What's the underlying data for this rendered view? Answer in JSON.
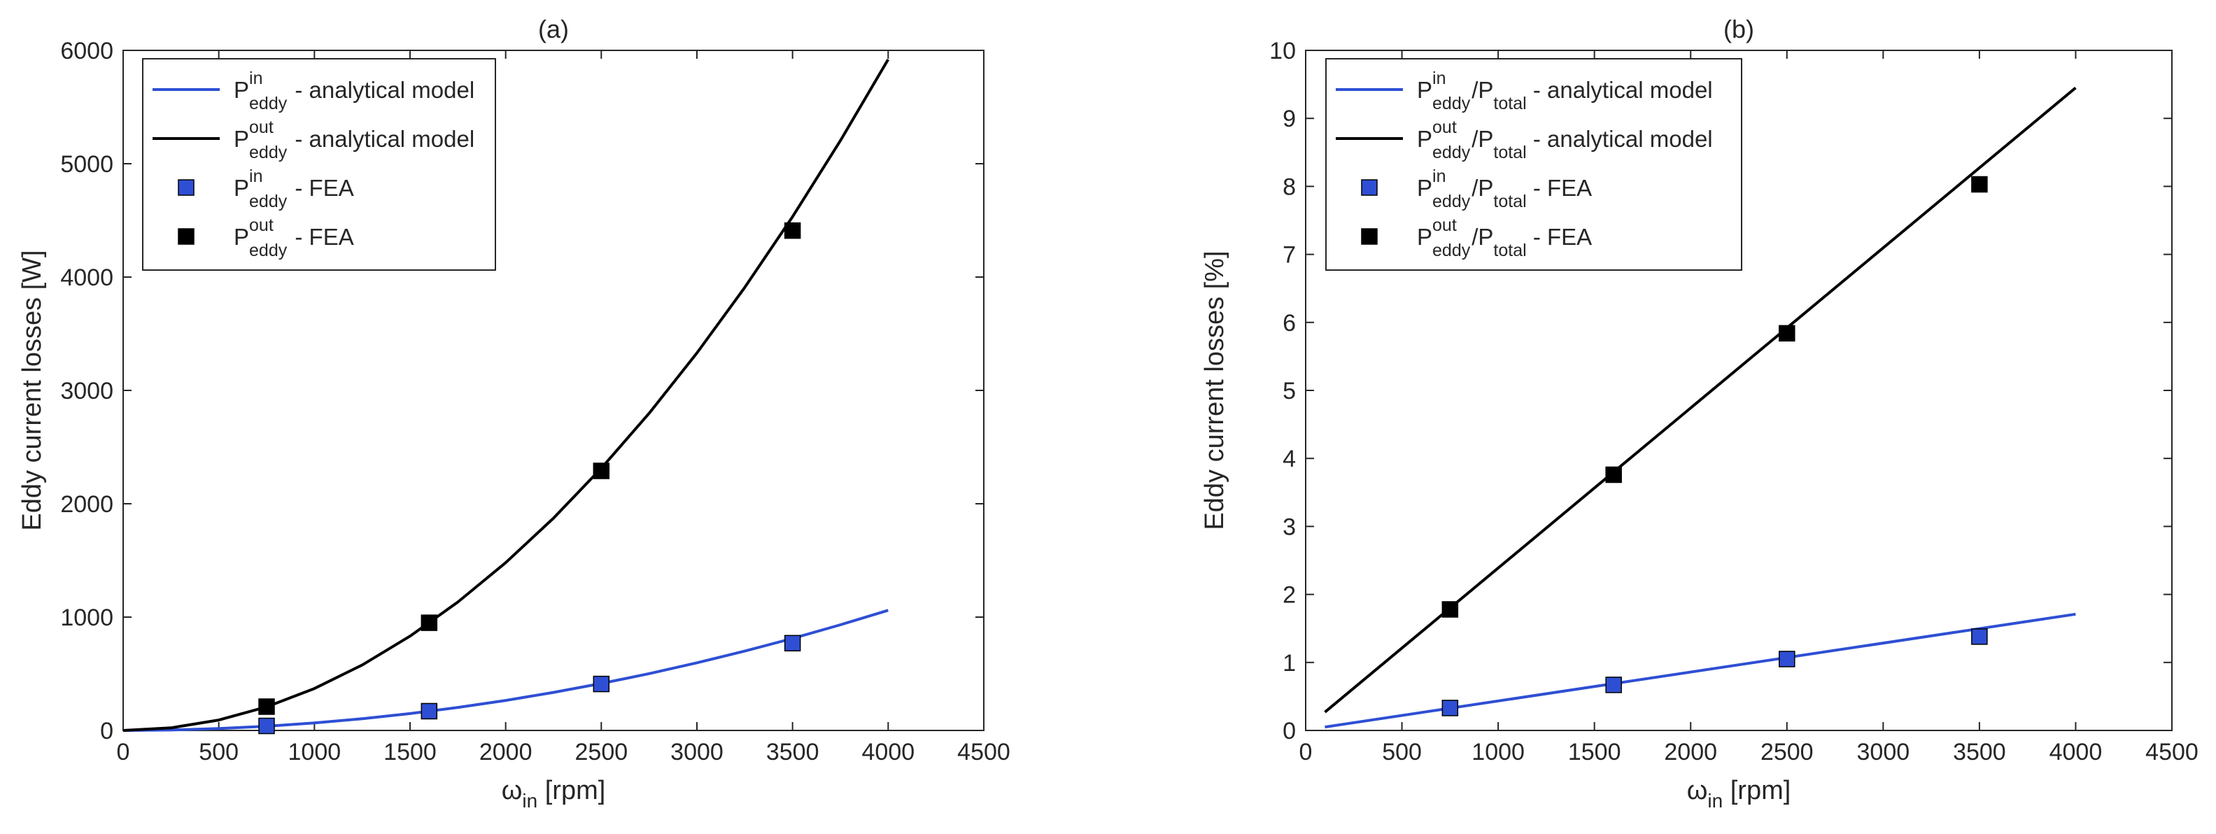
{
  "colors": {
    "blue": "#2e4fd4",
    "black": "#000000",
    "axis": "#262626"
  },
  "chart_data": [
    {
      "type": "line",
      "title": "(a)",
      "xlabel": {
        "main": "ω",
        "sub": "in",
        "rest": " [rpm]"
      },
      "ylabel": "Eddy current losses [W]",
      "xlim": [
        0,
        4500
      ],
      "ylim": [
        0,
        6000
      ],
      "xticks": [
        0,
        500,
        1000,
        1500,
        2000,
        2500,
        3000,
        3500,
        4000,
        4500
      ],
      "yticks": [
        0,
        1000,
        2000,
        3000,
        4000,
        5000,
        6000
      ],
      "series": [
        {
          "name": "analytical-in",
          "kind": "line",
          "color": "blue",
          "x": [
            0,
            250,
            500,
            750,
            1000,
            1250,
            1500,
            1750,
            2000,
            2250,
            2500,
            2750,
            3000,
            3250,
            3500,
            3750,
            4000
          ],
          "values": [
            0,
            4,
            17,
            37,
            66,
            104,
            149,
            203,
            265,
            336,
            414,
            501,
            597,
            700,
            812,
            932,
            1060
          ]
        },
        {
          "name": "analytical-out",
          "kind": "line",
          "color": "black",
          "x": [
            0,
            250,
            500,
            750,
            1000,
            1250,
            1500,
            1750,
            2000,
            2250,
            2500,
            2750,
            3000,
            3250,
            3500,
            3750,
            4000
          ],
          "values": [
            0,
            23,
            92,
            208,
            370,
            578,
            832,
            1133,
            1480,
            1873,
            2313,
            2798,
            3330,
            3908,
            4533,
            5203,
            5920
          ]
        },
        {
          "name": "fea-in",
          "kind": "marker",
          "color": "blue",
          "x": [
            750,
            1600,
            2500,
            3500
          ],
          "values": [
            40,
            170,
            410,
            770
          ]
        },
        {
          "name": "fea-out",
          "kind": "marker",
          "color": "black",
          "x": [
            750,
            1600,
            2500,
            3500
          ],
          "values": [
            210,
            950,
            2290,
            4410
          ]
        }
      ],
      "legend": {
        "position": "top-left",
        "entries": [
          {
            "kind": "line",
            "color": "blue",
            "sup": "in",
            "sub": "eddy",
            "text": " - analytical model"
          },
          {
            "kind": "line",
            "color": "black",
            "sup": "out",
            "sub": "eddy",
            "text": " - analytical model"
          },
          {
            "kind": "marker",
            "color": "blue",
            "sup": "in",
            "sub": "eddy",
            "text": " - FEA"
          },
          {
            "kind": "marker",
            "color": "black",
            "sup": "out",
            "sub": "eddy",
            "text": " - FEA"
          }
        ]
      }
    },
    {
      "type": "line",
      "title": "(b)",
      "xlabel": {
        "main": "ω",
        "sub": "in",
        "rest": " [rpm]"
      },
      "ylabel": "Eddy current losses [%]",
      "xlim": [
        0,
        4500
      ],
      "ylim": [
        0,
        10
      ],
      "xticks": [
        0,
        500,
        1000,
        1500,
        2000,
        2500,
        3000,
        3500,
        4000,
        4500
      ],
      "yticks": [
        0,
        1,
        2,
        3,
        4,
        5,
        6,
        7,
        8,
        9,
        10
      ],
      "series": [
        {
          "name": "analytical-in",
          "kind": "line",
          "color": "blue",
          "x": [
            100,
            4000
          ],
          "values": [
            0.05,
            1.71
          ]
        },
        {
          "name": "analytical-out",
          "kind": "line",
          "color": "black",
          "x": [
            100,
            4000
          ],
          "values": [
            0.27,
            9.45
          ]
        },
        {
          "name": "fea-in",
          "kind": "marker",
          "color": "blue",
          "x": [
            750,
            1600,
            2500,
            3500
          ],
          "values": [
            0.33,
            0.67,
            1.05,
            1.38
          ]
        },
        {
          "name": "fea-out",
          "kind": "marker",
          "color": "black",
          "x": [
            750,
            1600,
            2500,
            3500
          ],
          "values": [
            1.78,
            3.76,
            5.84,
            8.03
          ]
        }
      ],
      "legend": {
        "position": "top-left",
        "entries": [
          {
            "kind": "line",
            "color": "blue",
            "sup": "in",
            "sub": "eddy",
            "text": "/P",
            "sub2": "total",
            "text2": " - analytical model"
          },
          {
            "kind": "line",
            "color": "black",
            "sup": "out",
            "sub": "eddy",
            "text": "/P",
            "sub2": "total",
            "text2": " - analytical model"
          },
          {
            "kind": "marker",
            "color": "blue",
            "sup": "in",
            "sub": "eddy",
            "text": "/P",
            "sub2": "total",
            "text2": " - FEA"
          },
          {
            "kind": "marker",
            "color": "black",
            "sup": "out",
            "sub": "eddy",
            "text": "/P",
            "sub2": "total",
            "text2": " - FEA"
          }
        ]
      }
    }
  ]
}
